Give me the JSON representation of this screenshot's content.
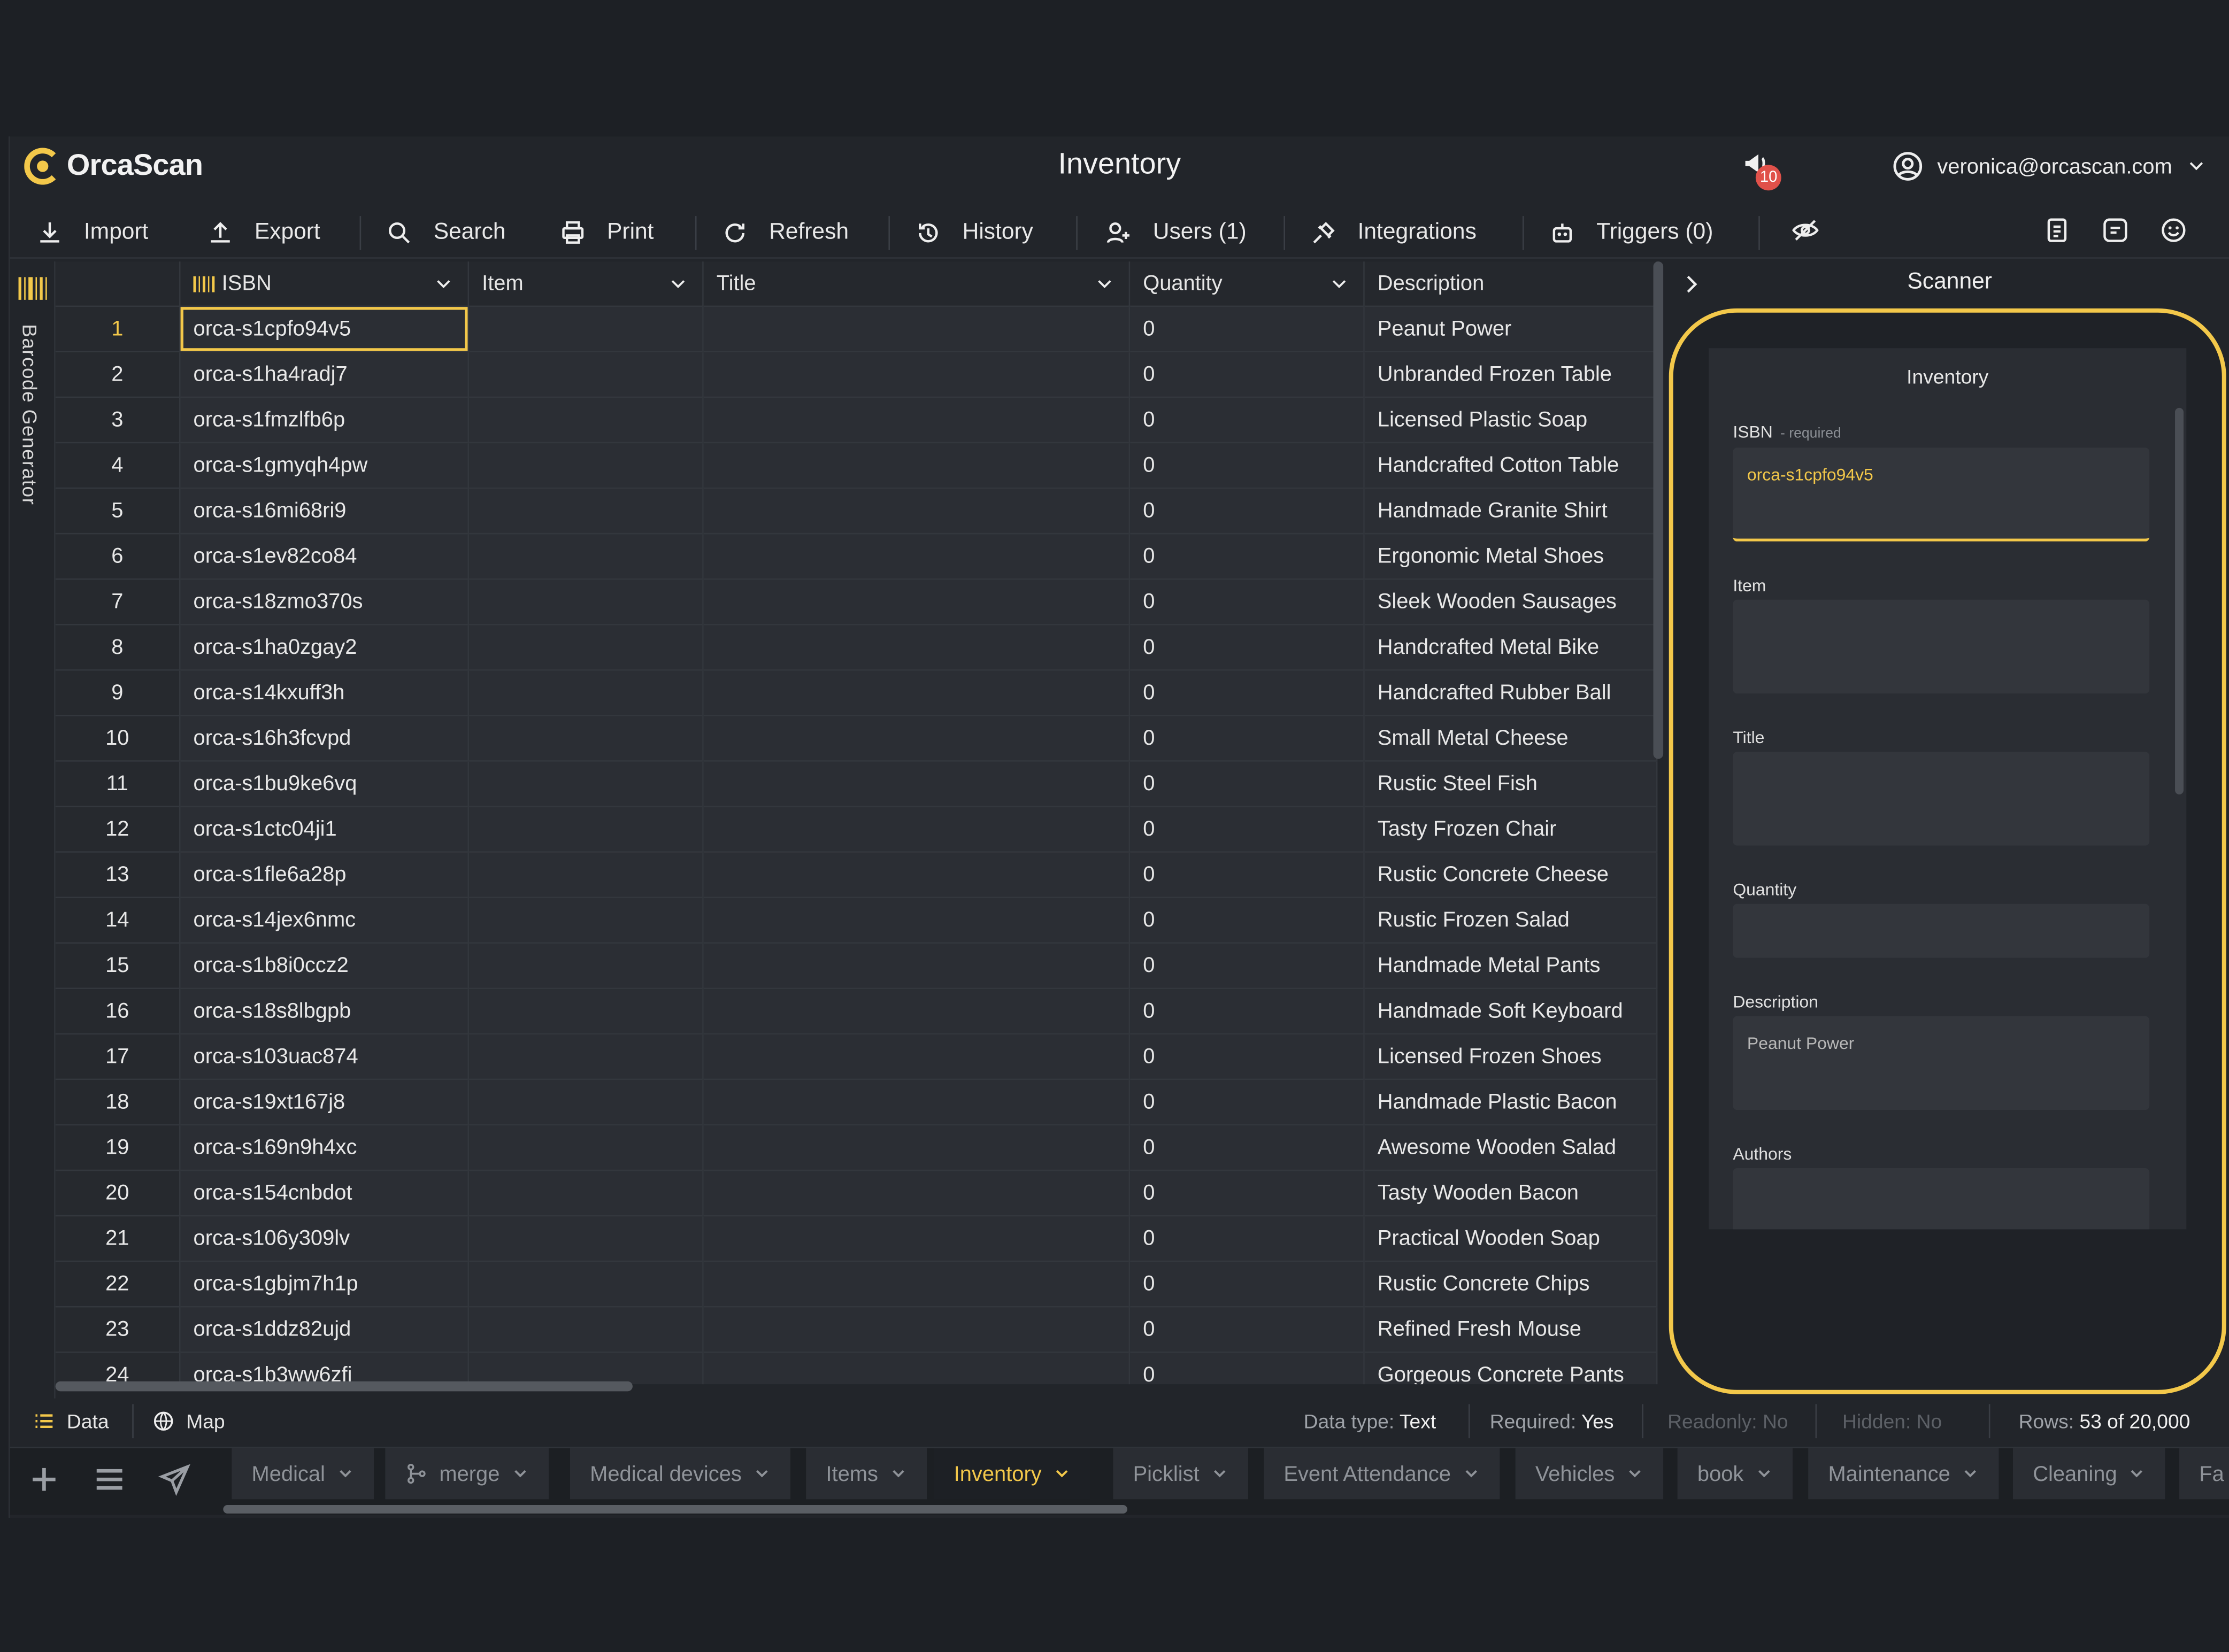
{
  "header": {
    "brand": "OrcaScan",
    "title": "Inventory",
    "notifications": "10",
    "user_email": "veronica@orcascan.com"
  },
  "toolbar": [
    {
      "label": "Import",
      "icon": "download-icon"
    },
    {
      "label": "Export",
      "icon": "upload-icon"
    },
    {
      "label": "Search",
      "icon": "search-icon"
    },
    {
      "label": "Print",
      "icon": "printer-icon"
    },
    {
      "label": "Refresh",
      "icon": "refresh-icon"
    },
    {
      "label": "History",
      "icon": "history-icon"
    },
    {
      "label": "Users (1)",
      "icon": "user-plus-icon"
    },
    {
      "label": "Integrations",
      "icon": "plug-icon"
    },
    {
      "label": "Triggers (0)",
      "icon": "robot-icon"
    }
  ],
  "rail": {
    "label": "Barcode Generator"
  },
  "grid": {
    "columns": [
      "ISBN",
      "Item",
      "Title",
      "Quantity",
      "Description"
    ],
    "rows": [
      {
        "n": "1",
        "isbn": "orca-s1cpfo94v5",
        "qty": "0",
        "desc": "Peanut Power"
      },
      {
        "n": "2",
        "isbn": "orca-s1ha4radj7",
        "qty": "0",
        "desc": "Unbranded Frozen Table"
      },
      {
        "n": "3",
        "isbn": "orca-s1fmzlfb6p",
        "qty": "0",
        "desc": "Licensed Plastic Soap"
      },
      {
        "n": "4",
        "isbn": "orca-s1gmyqh4pw",
        "qty": "0",
        "desc": "Handcrafted Cotton Table"
      },
      {
        "n": "5",
        "isbn": "orca-s16mi68ri9",
        "qty": "0",
        "desc": "Handmade Granite Shirt"
      },
      {
        "n": "6",
        "isbn": "orca-s1ev82co84",
        "qty": "0",
        "desc": "Ergonomic Metal Shoes"
      },
      {
        "n": "7",
        "isbn": "orca-s18zmo370s",
        "qty": "0",
        "desc": "Sleek Wooden Sausages"
      },
      {
        "n": "8",
        "isbn": "orca-s1ha0zgay2",
        "qty": "0",
        "desc": "Handcrafted Metal Bike"
      },
      {
        "n": "9",
        "isbn": "orca-s14kxuff3h",
        "qty": "0",
        "desc": "Handcrafted Rubber Ball"
      },
      {
        "n": "10",
        "isbn": "orca-s16h3fcvpd",
        "qty": "0",
        "desc": "Small Metal Cheese"
      },
      {
        "n": "11",
        "isbn": "orca-s1bu9ke6vq",
        "qty": "0",
        "desc": "Rustic Steel Fish"
      },
      {
        "n": "12",
        "isbn": "orca-s1ctc04ji1",
        "qty": "0",
        "desc": "Tasty Frozen Chair"
      },
      {
        "n": "13",
        "isbn": "orca-s1fle6a28p",
        "qty": "0",
        "desc": "Rustic Concrete Cheese"
      },
      {
        "n": "14",
        "isbn": "orca-s14jex6nmc",
        "qty": "0",
        "desc": "Rustic Frozen Salad"
      },
      {
        "n": "15",
        "isbn": "orca-s1b8i0ccz2",
        "qty": "0",
        "desc": "Handmade Metal Pants"
      },
      {
        "n": "16",
        "isbn": "orca-s18s8lbgpb",
        "qty": "0",
        "desc": "Handmade Soft Keyboard"
      },
      {
        "n": "17",
        "isbn": "orca-s103uac874",
        "qty": "0",
        "desc": "Licensed Frozen Shoes"
      },
      {
        "n": "18",
        "isbn": "orca-s19xt167j8",
        "qty": "0",
        "desc": "Handmade Plastic Bacon"
      },
      {
        "n": "19",
        "isbn": "orca-s169n9h4xc",
        "qty": "0",
        "desc": "Awesome Wooden Salad"
      },
      {
        "n": "20",
        "isbn": "orca-s154cnbdot",
        "qty": "0",
        "desc": "Tasty Wooden Bacon"
      },
      {
        "n": "21",
        "isbn": "orca-s106y309lv",
        "qty": "0",
        "desc": "Practical Wooden Soap"
      },
      {
        "n": "22",
        "isbn": "orca-s1gbjm7h1p",
        "qty": "0",
        "desc": "Rustic Concrete Chips"
      },
      {
        "n": "23",
        "isbn": "orca-s1ddz82ujd",
        "qty": "0",
        "desc": "Refined Fresh Mouse"
      },
      {
        "n": "24",
        "isbn": "orca-s1b3ww6zfi",
        "qty": "0",
        "desc": "Gorgeous Concrete Pants"
      }
    ]
  },
  "scanner": {
    "title": "Scanner",
    "form_title": "Inventory",
    "isbn_label": "ISBN",
    "isbn_required": "- required",
    "isbn_value": "orca-s1cpfo94v5",
    "item_label": "Item",
    "title_label": "Title",
    "quantity_label": "Quantity",
    "description_label": "Description",
    "description_value": "Peanut Power",
    "authors_label": "Authors"
  },
  "status": {
    "data": "Data",
    "map": "Map",
    "data_type_label": "Data type:",
    "data_type_value": "Text",
    "required_label": "Required:",
    "required_value": "Yes",
    "readonly_label": "Readonly:",
    "readonly_value": "No",
    "hidden_label": "Hidden:",
    "hidden_value": "No",
    "rows_label": "Rows:",
    "rows_value": "53 of 20,000"
  },
  "tabs": [
    {
      "label": "Medical",
      "active": false
    },
    {
      "label": "merge",
      "active": false
    },
    {
      "label": "Medical devices",
      "active": false
    },
    {
      "label": "Items",
      "active": false
    },
    {
      "label": "Inventory",
      "active": true
    },
    {
      "label": "Picklist",
      "active": false
    },
    {
      "label": "Event Attendance",
      "active": false
    },
    {
      "label": "Vehicles",
      "active": false
    },
    {
      "label": "book",
      "active": false
    },
    {
      "label": "Maintenance",
      "active": false
    },
    {
      "label": "Cleaning",
      "active": false
    },
    {
      "label": "Fa",
      "active": false
    }
  ],
  "colors": {
    "accent": "#f3c84a",
    "background": "#1d2025",
    "badge": "#e0514a"
  }
}
